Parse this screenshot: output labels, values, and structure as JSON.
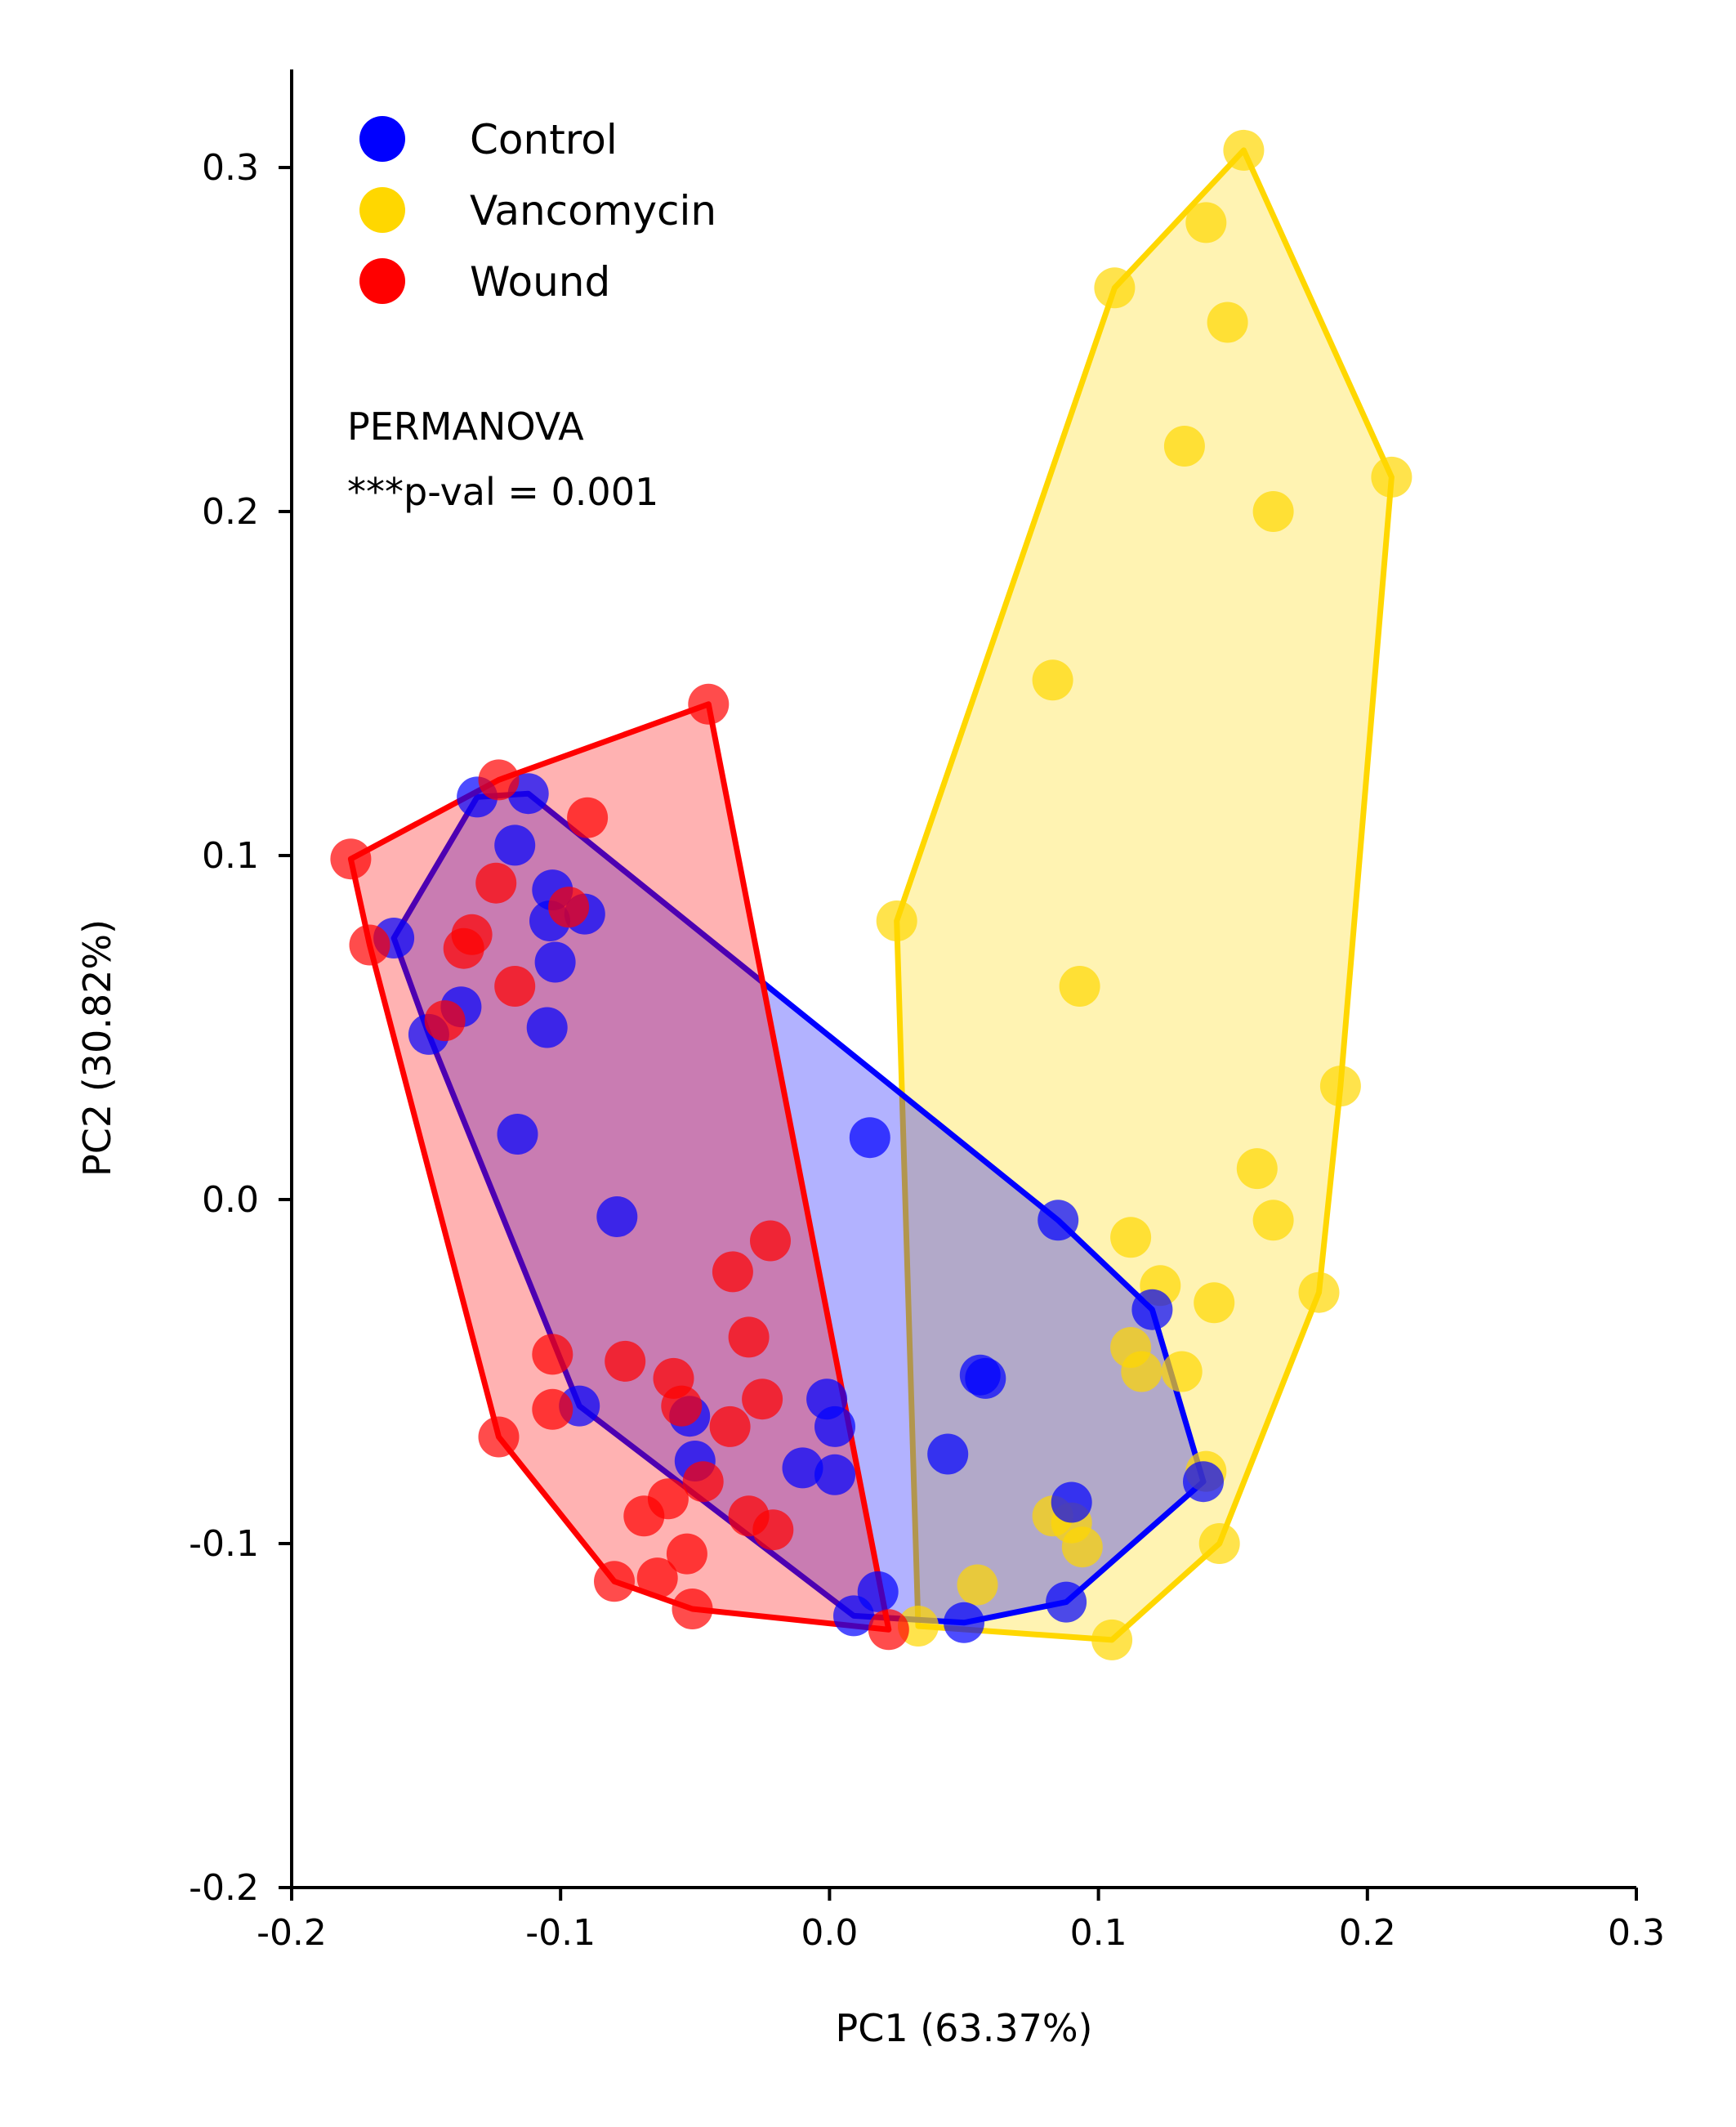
{
  "chart_data": {
    "type": "scatter",
    "xlabel": "PC1 (63.37%)",
    "ylabel": "PC2 (30.82%)",
    "xlim": [
      -0.2,
      0.3
    ],
    "ylim": [
      -0.2,
      0.3
    ],
    "x_ticks": [
      "-0.2",
      "-0.1",
      "0.0",
      "0.1",
      "0.2",
      "0.3"
    ],
    "y_ticks": [
      "-0.2",
      "-0.1",
      "0.0",
      "0.1",
      "0.2",
      "0.3"
    ],
    "legend_position": "top-left",
    "annotation_lines": [
      "PERMANOVA",
      "***p-val = 0.001"
    ],
    "grid": false,
    "hulls": "convex hull drawn around each group",
    "series": [
      {
        "name": "Control",
        "color": "#0000ff",
        "points": [
          [
            -0.131,
            0.117
          ],
          [
            -0.112,
            0.118
          ],
          [
            -0.117,
            0.103
          ],
          [
            -0.103,
            0.09
          ],
          [
            -0.091,
            0.083
          ],
          [
            -0.104,
            0.081
          ],
          [
            -0.102,
            0.069
          ],
          [
            -0.162,
            0.076
          ],
          [
            -0.137,
            0.056
          ],
          [
            -0.149,
            0.048
          ],
          [
            -0.105,
            0.05
          ],
          [
            -0.116,
            0.019
          ],
          [
            -0.079,
            -0.005
          ],
          [
            0.015,
            0.018
          ],
          [
            0.085,
            -0.006
          ],
          [
            0.12,
            -0.032
          ],
          [
            0.139,
            -0.082
          ],
          [
            0.09,
            -0.088
          ],
          [
            0.056,
            -0.051
          ],
          [
            0.058,
            -0.052
          ],
          [
            0.044,
            -0.074
          ],
          [
            0.088,
            -0.117
          ],
          [
            0.05,
            -0.123
          ],
          [
            0.009,
            -0.121
          ],
          [
            0.018,
            -0.114
          ],
          [
            -0.093,
            -0.06
          ],
          [
            -0.052,
            -0.063
          ],
          [
            -0.05,
            -0.076
          ],
          [
            -0.01,
            -0.078
          ],
          [
            0.002,
            -0.08
          ],
          [
            -0.001,
            -0.058
          ],
          [
            0.002,
            -0.066
          ]
        ]
      },
      {
        "name": "Vancomycin",
        "color": "#ffd700",
        "points": [
          [
            0.154,
            0.305
          ],
          [
            0.14,
            0.284
          ],
          [
            0.106,
            0.265
          ],
          [
            0.148,
            0.255
          ],
          [
            0.132,
            0.219
          ],
          [
            0.209,
            0.21
          ],
          [
            0.165,
            0.2
          ],
          [
            0.083,
            0.151
          ],
          [
            0.025,
            0.081
          ],
          [
            0.093,
            0.062
          ],
          [
            0.19,
            0.033
          ],
          [
            0.159,
            0.009
          ],
          [
            0.165,
            -0.006
          ],
          [
            0.112,
            -0.011
          ],
          [
            0.123,
            -0.025
          ],
          [
            0.143,
            -0.03
          ],
          [
            0.182,
            -0.027
          ],
          [
            0.112,
            -0.043
          ],
          [
            0.116,
            -0.05
          ],
          [
            0.131,
            -0.05
          ],
          [
            0.14,
            -0.079
          ],
          [
            0.145,
            -0.1
          ],
          [
            0.083,
            -0.092
          ],
          [
            0.09,
            -0.094
          ],
          [
            0.094,
            -0.101
          ],
          [
            0.055,
            -0.112
          ],
          [
            0.033,
            -0.124
          ],
          [
            0.105,
            -0.128
          ]
        ]
      },
      {
        "name": "Wound",
        "color": "#ff0000",
        "points": [
          [
            -0.045,
            0.144
          ],
          [
            -0.123,
            0.122
          ],
          [
            -0.09,
            0.111
          ],
          [
            -0.178,
            0.099
          ],
          [
            -0.097,
            0.085
          ],
          [
            -0.124,
            0.092
          ],
          [
            -0.133,
            0.077
          ],
          [
            -0.136,
            0.073
          ],
          [
            -0.171,
            0.074
          ],
          [
            -0.117,
            0.062
          ],
          [
            -0.143,
            0.052
          ],
          [
            -0.022,
            -0.012
          ],
          [
            -0.036,
            -0.021
          ],
          [
            -0.03,
            -0.04
          ],
          [
            -0.103,
            -0.045
          ],
          [
            -0.076,
            -0.047
          ],
          [
            -0.058,
            -0.052
          ],
          [
            -0.055,
            -0.06
          ],
          [
            -0.025,
            -0.058
          ],
          [
            -0.037,
            -0.066
          ],
          [
            -0.103,
            -0.061
          ],
          [
            -0.123,
            -0.069
          ],
          [
            -0.047,
            -0.082
          ],
          [
            -0.06,
            -0.087
          ],
          [
            -0.069,
            -0.092
          ],
          [
            -0.03,
            -0.092
          ],
          [
            -0.021,
            -0.096
          ],
          [
            -0.053,
            -0.103
          ],
          [
            -0.064,
            -0.11
          ],
          [
            -0.08,
            -0.111
          ],
          [
            -0.051,
            -0.119
          ],
          [
            0.022,
            -0.125
          ]
        ]
      }
    ]
  }
}
